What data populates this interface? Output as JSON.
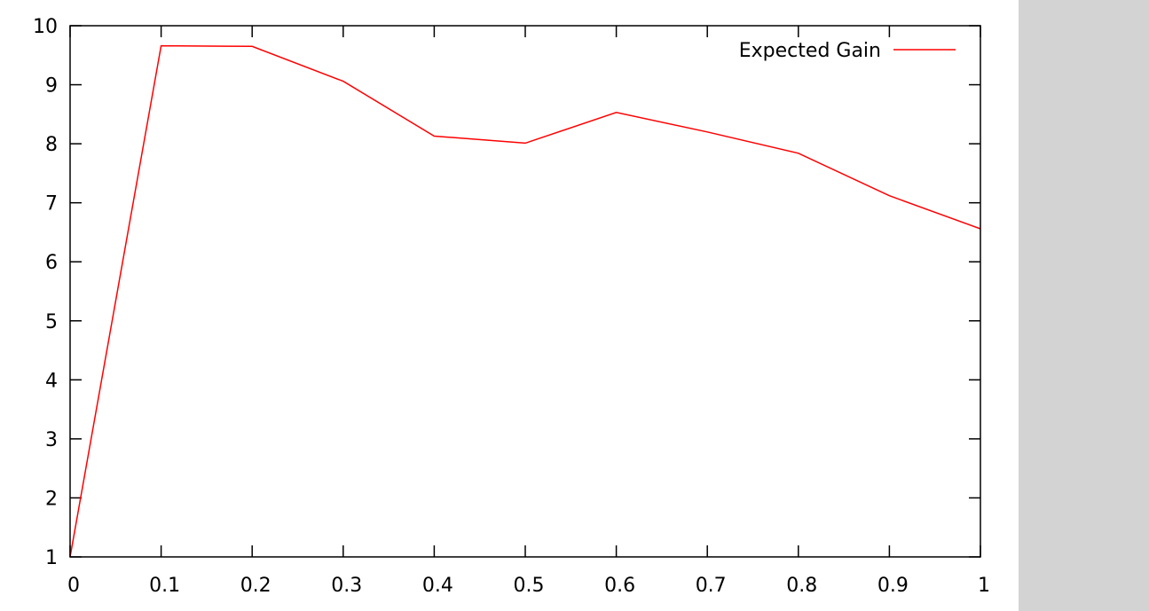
{
  "chart_data": {
    "type": "line",
    "title": "",
    "xlabel": "",
    "ylabel": "",
    "xlim": [
      0,
      1
    ],
    "ylim": [
      1,
      10
    ],
    "x_ticks": [
      "0",
      "0.1",
      "0.2",
      "0.3",
      "0.4",
      "0.5",
      "0.6",
      "0.7",
      "0.8",
      "0.9",
      "1"
    ],
    "y_ticks": [
      "1",
      "2",
      "3",
      "4",
      "5",
      "6",
      "7",
      "8",
      "9",
      "10"
    ],
    "grid": false,
    "legend_position": "top-right",
    "series": [
      {
        "name": "Expected Gain",
        "color": "#ff0000",
        "x": [
          0,
          0.1,
          0.2,
          0.3,
          0.4,
          0.5,
          0.6,
          0.7,
          0.8,
          0.9,
          1
        ],
        "y": [
          1.0,
          9.66,
          9.65,
          9.06,
          8.13,
          8.01,
          8.53,
          8.2,
          7.84,
          7.12,
          6.56
        ]
      }
    ]
  },
  "colors": {
    "background": "#ffffff",
    "side_panel": "#d3d3d3",
    "axis": "#000000"
  }
}
